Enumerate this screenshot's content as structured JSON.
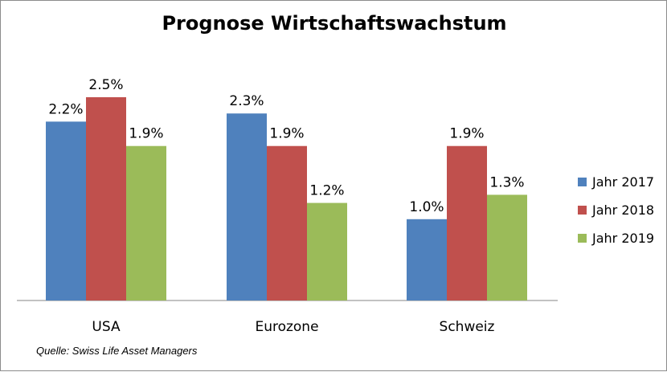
{
  "chart_data": {
    "type": "bar",
    "title": "Prognose Wirtschaftswachstum",
    "categories": [
      "USA",
      "Eurozone",
      "Schweiz"
    ],
    "series": [
      {
        "name": "Jahr 2017",
        "color": "#4f81bd",
        "values": [
          2.2,
          2.3,
          1.0
        ],
        "labels": [
          "2.2%",
          "2.3%",
          "1.0%"
        ]
      },
      {
        "name": "Jahr 2018",
        "color": "#c0504d",
        "values": [
          2.5,
          1.9,
          1.9
        ],
        "labels": [
          "2.5%",
          "1.9%",
          "1.9%"
        ]
      },
      {
        "name": "Jahr 2019",
        "color": "#9bbb59",
        "values": [
          1.9,
          1.2,
          1.3
        ],
        "labels": [
          "1.9%",
          "1.2%",
          "1.3%"
        ]
      }
    ],
    "ylim": [
      0,
      2.5
    ],
    "grid": false,
    "legend_position": "right",
    "source": "Quelle: Swiss Life Asset Managers"
  }
}
